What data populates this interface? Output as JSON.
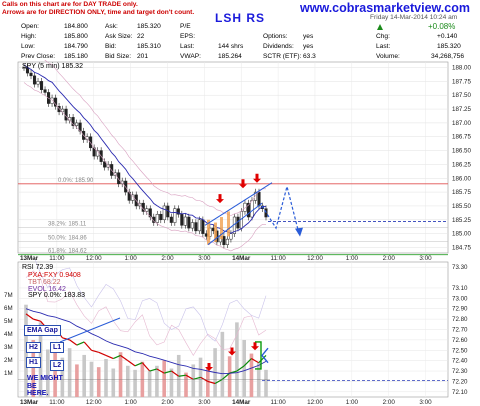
{
  "notice": {
    "line1": "Calls on this chart are for DAY TRADE only.",
    "line2": "Arrows are for DIRECTION ONLY, time and target don't count."
  },
  "site_url": "www.cobrasmarketview.com",
  "symbol_banner": "LSH RS",
  "header": {
    "open_label": "Open:",
    "open": "184.800",
    "high_label": "High:",
    "high": "185.800",
    "low_label": "Low:",
    "low": "184.790",
    "prev_close_label": "Prev Close:",
    "prev_close": "185.180",
    "ask_label": "Ask:",
    "ask": "185.320",
    "ask_size_label": "Ask Size:",
    "ask_size": "22",
    "bid_label": "Bid:",
    "bid": "185.310",
    "bid_size_label": "Bid Size:",
    "bid_size": "201",
    "pe_label": "P/E",
    "pe": "",
    "eps_label": "EPS:",
    "eps": "",
    "last_label": "Last:",
    "last": "144 shrs",
    "vwap_label": "VWAP:",
    "vwap": "185.264",
    "options_label": "Options:",
    "options": "yes",
    "dividends_label": "Dividends:",
    "dividends": "yes",
    "sctr_label": "SCTR (ETF):",
    "sctr": "63.3",
    "date_partial": "Friday 14-Mar-2014 10:24 am",
    "chg_pct": "+0.08%",
    "chg_label": "Chg:",
    "chg": "+0.140",
    "last2_label": "Last:",
    "last2": "185.320",
    "volume_label": "Volume:",
    "volume": "34,268,756"
  },
  "chart_data": [
    {
      "type": "candlestick",
      "title": "SPY (5 min) 185.32",
      "ylim": [
        184.65,
        188.1
      ],
      "yticks": [
        "188.00",
        "187.75",
        "187.50",
        "187.25",
        "187.00",
        "186.75",
        "186.50",
        "186.25",
        "186.00",
        "185.75",
        "185.50",
        "185.25",
        "185.00",
        "184.75"
      ],
      "xtick_labels": [
        "13Mar",
        "11:00",
        "12:00",
        "1:00",
        "2:00",
        "3:00",
        "14Mar",
        "11:00",
        "12:00",
        "1:00",
        "2:00",
        "3:00"
      ],
      "fib_levels": [
        {
          "label": "0.0%: 185.90",
          "value": 185.9
        },
        {
          "label": "38.2%: 185.11",
          "value": 185.11
        },
        {
          "label": "50.0%: 184.86",
          "value": 184.86
        },
        {
          "label": "61.8%: 184.62",
          "value": 184.62
        }
      ],
      "closes": [
        188.0,
        187.9,
        187.85,
        187.7,
        187.75,
        187.6,
        187.55,
        187.35,
        187.45,
        187.3,
        187.2,
        187.25,
        187.05,
        187.1,
        186.95,
        187.0,
        186.85,
        186.7,
        186.75,
        186.55,
        186.4,
        186.5,
        186.3,
        186.2,
        186.25,
        186.05,
        186.1,
        185.9,
        185.95,
        185.75,
        185.6,
        185.7,
        185.5,
        185.55,
        185.4,
        185.45,
        185.3,
        185.2,
        185.35,
        185.25,
        185.5,
        185.3,
        185.2,
        185.45,
        185.35,
        185.15,
        185.3,
        185.1,
        185.2,
        185.05,
        185.25,
        185.0,
        184.95,
        185.1,
        185.05,
        184.85,
        184.95,
        184.8,
        184.9,
        185.0,
        185.3,
        185.1,
        185.4,
        185.55,
        185.3,
        185.6,
        185.75,
        185.5,
        185.45,
        185.3
      ],
      "indicators": [
        "SMA",
        "Bollinger Bands"
      ]
    },
    {
      "type": "line",
      "title": "RSI 72.39",
      "legend": [
        {
          "name": "PXA:FXY 0.9408",
          "color": "#d00000"
        },
        {
          "name": "TBT 68.22",
          "color": "#c86464"
        },
        {
          "name": "EVOL 16.42",
          "color": "#7030a0"
        },
        {
          "name": "SPY 0.0%: 183.83",
          "color": "#000000"
        }
      ],
      "ylim": [
        72.05,
        73.35
      ],
      "yticks": [
        "73.30",
        "73.10",
        "73.00",
        "72.90",
        "72.80",
        "72.70",
        "72.60",
        "72.50",
        "72.40",
        "72.30",
        "72.20",
        "72.10"
      ],
      "vol_ticks": [
        "7M",
        "6M",
        "5M",
        "4M",
        "3M",
        "2M",
        "1M"
      ],
      "xtick_labels": [
        "13Mar",
        "11:00",
        "12:00",
        "1:00",
        "2:00",
        "3:00",
        "14Mar",
        "11:00",
        "12:00",
        "1:00",
        "2:00",
        "3:00"
      ],
      "price": [
        72.85,
        72.8,
        72.78,
        72.7,
        72.72,
        72.62,
        72.6,
        72.55,
        72.58,
        72.5,
        72.48,
        72.45,
        72.42,
        72.45,
        72.4,
        72.35,
        72.38,
        72.3,
        72.32,
        72.28,
        72.3,
        72.25,
        72.26,
        72.22,
        72.24,
        72.2,
        72.18,
        72.22,
        72.28,
        72.3,
        72.35,
        72.42,
        72.38,
        72.45
      ],
      "volume": [
        6.8,
        4.2,
        5.5,
        3.5,
        4.0,
        2.9,
        3.6,
        2.4,
        3.1,
        2.6,
        2.2,
        2.8,
        2.1,
        3.3,
        2.3,
        2.0,
        2.6,
        1.9,
        2.3,
        2.7,
        2.1,
        3.1,
        1.8,
        2.4,
        2.9,
        2.2,
        3.6,
        4.8,
        3.0,
        5.5,
        4.2,
        3.2,
        2.5,
        2.0
      ]
    }
  ],
  "annotations": {
    "ema_gap": "EMA Gap",
    "h2": "H2",
    "l1": "L1",
    "h1": "H1",
    "l2": "L2",
    "we_might_1": "WE MIGHT",
    "we_might_2": "BE",
    "we_might_3": "HERE."
  }
}
